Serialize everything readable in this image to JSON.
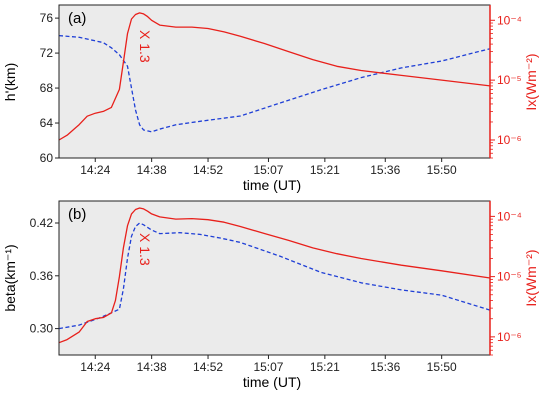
{
  "colors": {
    "left_series": "#1f3fd6",
    "right_series": "#e8201b",
    "plot_background": "#ebebeb",
    "axis": "#222222"
  },
  "chart_data": [
    {
      "type": "line",
      "panel_label": "(a)",
      "xlabel": "time (UT)",
      "ylabel": "h'(km)",
      "y2label": "Ix(Wm⁻²)",
      "annotation": "X 1.3",
      "x_ticks": [
        "14:24",
        "14:38",
        "14:52",
        "15:07",
        "15:21",
        "15:36",
        "15:50"
      ],
      "xlim_minutes": [
        855,
        962
      ],
      "ylim": [
        60,
        77.5
      ],
      "y_ticks": [
        60,
        64,
        68,
        72,
        76
      ],
      "y2_scale": "log",
      "y2lim": [
        5e-07,
        0.00018
      ],
      "y2_ticks": [
        "10⁻⁶",
        "10⁻⁵",
        "10⁻⁴"
      ],
      "grid": false,
      "series": [
        {
          "axis": "left",
          "style": "dashed",
          "color": "#1f3fd6",
          "x_minutes": [
            855,
            860,
            866,
            868,
            870,
            872,
            873,
            874,
            875,
            876,
            877,
            878,
            880,
            884,
            890,
            900,
            910,
            920,
            930,
            940,
            950,
            962
          ],
          "values": [
            74.0,
            73.8,
            73.2,
            72.6,
            71.8,
            70.5,
            68.0,
            65.5,
            63.8,
            63.2,
            63.1,
            63.0,
            63.3,
            63.8,
            64.2,
            64.8,
            66.3,
            67.8,
            69.2,
            70.3,
            71.1,
            72.5
          ]
        },
        {
          "axis": "right",
          "style": "solid",
          "color": "#e8201b",
          "x_minutes": [
            855,
            857,
            860,
            862,
            864,
            866,
            868,
            870,
            871,
            872,
            873,
            874,
            875,
            876,
            877,
            878,
            880,
            884,
            888,
            892,
            896,
            900,
            906,
            912,
            918,
            924,
            930,
            940,
            950,
            962
          ],
          "values": [
            1e-06,
            1.2e-06,
            1.8e-06,
            2.5e-06,
            2.8e-06,
            3e-06,
            3.5e-06,
            7e-06,
            2e-05,
            6e-05,
            0.000105,
            0.000125,
            0.000133,
            0.000128,
            0.000115,
            0.0001,
            8.3e-05,
            7.7e-05,
            7.7e-05,
            7.3e-05,
            6.4e-05,
            5.4e-05,
            4.1e-05,
            3e-05,
            2.2e-05,
            1.7e-05,
            1.45e-05,
            1.2e-05,
            1e-05,
            8e-06
          ]
        }
      ]
    },
    {
      "type": "line",
      "panel_label": "(b)",
      "xlabel": "time (UT)",
      "ylabel": "beta(km⁻¹)",
      "y2label": "Ix(Wm⁻²)",
      "annotation": "X 1.3",
      "x_ticks": [
        "14:24",
        "14:38",
        "14:52",
        "15:07",
        "15:21",
        "15:36",
        "15:50"
      ],
      "xlim_minutes": [
        855,
        962
      ],
      "ylim": [
        0.27,
        0.445
      ],
      "y_ticks": [
        0.3,
        0.36,
        0.42
      ],
      "y_tick_labels": [
        "0.30",
        "0.36",
        "0.42"
      ],
      "y2_scale": "log",
      "y2lim": [
        5e-07,
        0.00018
      ],
      "y2_ticks": [
        "10⁻⁶",
        "10⁻⁵",
        "10⁻⁴"
      ],
      "grid": false,
      "series": [
        {
          "axis": "left",
          "style": "dashed",
          "color": "#1f3fd6",
          "x_minutes": [
            855,
            860,
            865,
            868,
            870,
            871,
            872,
            873,
            874,
            875,
            876,
            877,
            878,
            880,
            885,
            890,
            895,
            900,
            910,
            920,
            930,
            940,
            950,
            962
          ],
          "values": [
            0.3,
            0.304,
            0.312,
            0.318,
            0.322,
            0.345,
            0.38,
            0.405,
            0.416,
            0.42,
            0.418,
            0.415,
            0.412,
            0.408,
            0.409,
            0.407,
            0.403,
            0.398,
            0.382,
            0.364,
            0.352,
            0.344,
            0.338,
            0.321
          ]
        },
        {
          "axis": "right",
          "style": "solid",
          "color": "#e8201b",
          "x_minutes": [
            855,
            857,
            860,
            862,
            864,
            866,
            868,
            869,
            870,
            871,
            872,
            873,
            874,
            875,
            876,
            877,
            878,
            880,
            884,
            888,
            892,
            896,
            900,
            906,
            912,
            918,
            924,
            930,
            940,
            950,
            962
          ],
          "values": [
            8e-07,
            9e-07,
            1.2e-06,
            1.8e-06,
            2e-06,
            2.1e-06,
            2.5e-06,
            4e-06,
            1e-05,
            3e-05,
            7e-05,
            0.00011,
            0.00013,
            0.000138,
            0.000133,
            0.000122,
            0.00011,
            9.8e-05,
            9e-05,
            9.2e-05,
            8.8e-05,
            8e-05,
            6.8e-05,
            5.2e-05,
            4e-05,
            3e-05,
            2.4e-05,
            2e-05,
            1.55e-05,
            1.25e-05,
            9.5e-06
          ]
        }
      ]
    }
  ]
}
